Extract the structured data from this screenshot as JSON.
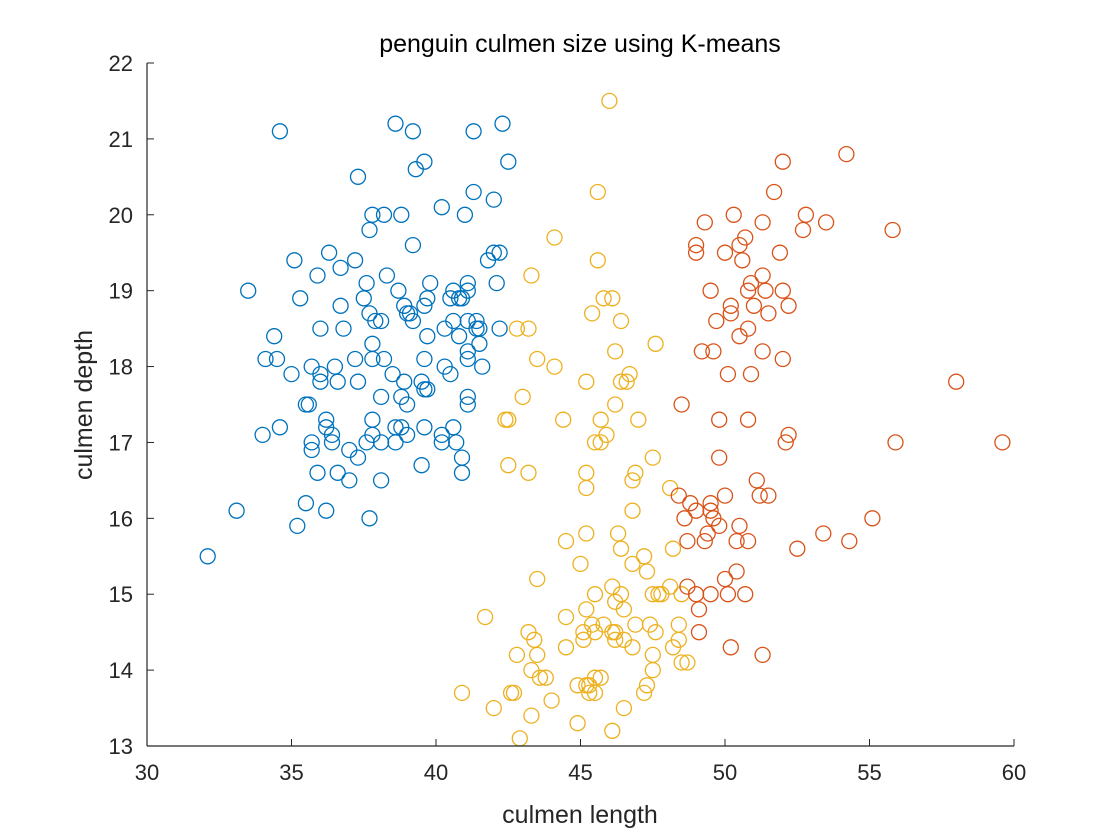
{
  "chart_data": {
    "type": "scatter",
    "title": "penguin culmen size using K-means",
    "xlabel": "culmen length",
    "ylabel": "culmen depth",
    "xlim": [
      30,
      60
    ],
    "ylim": [
      13,
      22
    ],
    "xticks": [
      "30",
      "35",
      "40",
      "45",
      "50",
      "55",
      "60"
    ],
    "yticks": [
      "13",
      "14",
      "15",
      "16",
      "17",
      "18",
      "19",
      "20",
      "21",
      "22"
    ],
    "marker": "open-circle",
    "grid": false,
    "series": [
      {
        "color": "#0072BD",
        "points": [
          [
            32.1,
            15.5
          ],
          [
            33.1,
            16.1
          ],
          [
            33.5,
            19.0
          ],
          [
            34.0,
            17.1
          ],
          [
            34.1,
            18.1
          ],
          [
            34.4,
            18.4
          ],
          [
            34.5,
            18.1
          ],
          [
            34.6,
            17.2
          ],
          [
            34.6,
            21.1
          ],
          [
            35.0,
            17.9
          ],
          [
            35.1,
            19.4
          ],
          [
            35.2,
            15.9
          ],
          [
            35.3,
            18.9
          ],
          [
            35.5,
            17.5
          ],
          [
            35.5,
            16.2
          ],
          [
            35.6,
            17.5
          ],
          [
            35.7,
            17.0
          ],
          [
            35.7,
            16.9
          ],
          [
            35.7,
            18.0
          ],
          [
            35.9,
            16.6
          ],
          [
            35.9,
            19.2
          ],
          [
            36.0,
            17.9
          ],
          [
            36.0,
            18.5
          ],
          [
            36.0,
            17.8
          ],
          [
            36.2,
            16.1
          ],
          [
            36.2,
            17.3
          ],
          [
            36.2,
            17.2
          ],
          [
            36.3,
            19.5
          ],
          [
            36.4,
            17.0
          ],
          [
            36.4,
            17.1
          ],
          [
            36.5,
            18.0
          ],
          [
            36.6,
            17.8
          ],
          [
            36.7,
            18.8
          ],
          [
            36.7,
            19.3
          ],
          [
            36.6,
            16.6
          ],
          [
            36.8,
            18.5
          ],
          [
            37.0,
            16.5
          ],
          [
            37.0,
            16.9
          ],
          [
            37.2,
            18.1
          ],
          [
            37.2,
            19.4
          ],
          [
            37.3,
            17.8
          ],
          [
            37.3,
            20.5
          ],
          [
            37.3,
            16.8
          ],
          [
            37.5,
            18.9
          ],
          [
            37.6,
            19.1
          ],
          [
            37.6,
            17.0
          ],
          [
            37.7,
            18.7
          ],
          [
            37.7,
            19.8
          ],
          [
            37.7,
            16.0
          ],
          [
            37.8,
            18.3
          ],
          [
            37.8,
            17.1
          ],
          [
            37.8,
            20.0
          ],
          [
            37.8,
            17.3
          ],
          [
            37.8,
            18.1
          ],
          [
            37.9,
            18.6
          ],
          [
            38.1,
            17.0
          ],
          [
            38.1,
            18.6
          ],
          [
            38.1,
            16.5
          ],
          [
            38.1,
            17.6
          ],
          [
            38.2,
            18.1
          ],
          [
            38.2,
            20.0
          ],
          [
            38.3,
            19.2
          ],
          [
            38.5,
            17.9
          ],
          [
            38.6,
            21.2
          ],
          [
            38.6,
            17.2
          ],
          [
            38.6,
            17.0
          ],
          [
            38.7,
            19.0
          ],
          [
            38.8,
            17.2
          ],
          [
            38.8,
            20.0
          ],
          [
            38.8,
            17.6
          ],
          [
            38.9,
            18.8
          ],
          [
            38.9,
            17.8
          ],
          [
            39.0,
            17.1
          ],
          [
            39.0,
            18.7
          ],
          [
            39.0,
            17.5
          ],
          [
            39.1,
            18.7
          ],
          [
            39.2,
            19.6
          ],
          [
            39.2,
            21.1
          ],
          [
            39.2,
            18.6
          ],
          [
            39.3,
            20.6
          ],
          [
            39.5,
            16.7
          ],
          [
            39.5,
            17.8
          ],
          [
            39.6,
            17.7
          ],
          [
            39.6,
            18.1
          ],
          [
            39.6,
            18.8
          ],
          [
            39.6,
            17.2
          ],
          [
            39.6,
            20.7
          ],
          [
            39.7,
            18.4
          ],
          [
            39.7,
            17.7
          ],
          [
            39.7,
            18.9
          ],
          [
            39.8,
            19.1
          ],
          [
            40.2,
            17.0
          ],
          [
            40.2,
            20.1
          ],
          [
            40.2,
            17.1
          ],
          [
            40.3,
            18.0
          ],
          [
            40.3,
            18.5
          ],
          [
            40.5,
            17.9
          ],
          [
            40.5,
            18.9
          ],
          [
            40.6,
            19.0
          ],
          [
            40.6,
            17.2
          ],
          [
            40.6,
            18.6
          ],
          [
            40.7,
            17.0
          ],
          [
            40.8,
            18.4
          ],
          [
            40.8,
            18.9
          ],
          [
            40.9,
            16.6
          ],
          [
            40.9,
            16.8
          ],
          [
            40.9,
            18.9
          ],
          [
            41.0,
            20.0
          ],
          [
            41.1,
            17.5
          ],
          [
            41.1,
            18.2
          ],
          [
            41.1,
            19.0
          ],
          [
            41.1,
            18.1
          ],
          [
            41.1,
            17.6
          ],
          [
            41.1,
            19.1
          ],
          [
            41.1,
            18.6
          ],
          [
            41.3,
            20.3
          ],
          [
            41.3,
            21.1
          ],
          [
            41.4,
            18.6
          ],
          [
            41.4,
            18.5
          ],
          [
            41.5,
            18.3
          ],
          [
            41.5,
            18.5
          ],
          [
            41.6,
            18.0
          ],
          [
            41.8,
            19.4
          ],
          [
            42.0,
            20.2
          ],
          [
            42.0,
            19.5
          ],
          [
            42.1,
            19.1
          ],
          [
            42.2,
            19.5
          ],
          [
            42.2,
            18.5
          ],
          [
            42.3,
            21.2
          ],
          [
            42.5,
            20.7
          ]
        ]
      },
      {
        "color": "#EDB120",
        "points": [
          [
            40.9,
            13.7
          ],
          [
            41.7,
            14.7
          ],
          [
            42.0,
            13.5
          ],
          [
            42.4,
            17.3
          ],
          [
            42.5,
            17.3
          ],
          [
            42.5,
            16.7
          ],
          [
            42.6,
            13.7
          ],
          [
            42.7,
            13.7
          ],
          [
            42.8,
            18.5
          ],
          [
            42.8,
            14.2
          ],
          [
            42.9,
            13.1
          ],
          [
            43.0,
            17.6
          ],
          [
            43.2,
            14.5
          ],
          [
            43.2,
            16.6
          ],
          [
            43.2,
            18.5
          ],
          [
            43.3,
            14.0
          ],
          [
            43.3,
            13.4
          ],
          [
            43.3,
            19.2
          ],
          [
            43.4,
            14.4
          ],
          [
            43.5,
            15.2
          ],
          [
            43.5,
            18.1
          ],
          [
            43.5,
            14.2
          ],
          [
            43.6,
            13.9
          ],
          [
            43.8,
            13.9
          ],
          [
            44.0,
            13.6
          ],
          [
            44.1,
            18.0
          ],
          [
            44.1,
            19.7
          ],
          [
            44.4,
            17.3
          ],
          [
            44.5,
            14.3
          ],
          [
            44.5,
            15.7
          ],
          [
            44.5,
            14.7
          ],
          [
            44.9,
            13.3
          ],
          [
            44.9,
            13.8
          ],
          [
            45.0,
            15.4
          ],
          [
            45.1,
            14.5
          ],
          [
            45.1,
            14.4
          ],
          [
            45.2,
            13.8
          ],
          [
            45.2,
            14.8
          ],
          [
            45.2,
            15.8
          ],
          [
            45.2,
            16.6
          ],
          [
            45.2,
            16.4
          ],
          [
            45.2,
            17.8
          ],
          [
            45.3,
            13.7
          ],
          [
            45.3,
            13.8
          ],
          [
            45.4,
            14.6
          ],
          [
            45.4,
            18.7
          ],
          [
            45.5,
            13.7
          ],
          [
            45.5,
            13.9
          ],
          [
            45.5,
            15.0
          ],
          [
            45.5,
            14.5
          ],
          [
            45.5,
            17.0
          ],
          [
            45.6,
            19.4
          ],
          [
            45.6,
            20.3
          ],
          [
            45.7,
            13.9
          ],
          [
            45.7,
            17.3
          ],
          [
            45.7,
            17.0
          ],
          [
            45.8,
            14.6
          ],
          [
            45.8,
            18.9
          ],
          [
            45.9,
            17.1
          ],
          [
            46.0,
            21.5
          ],
          [
            46.1,
            18.9
          ],
          [
            46.1,
            15.1
          ],
          [
            46.1,
            13.2
          ],
          [
            46.1,
            14.5
          ],
          [
            46.2,
            14.5
          ],
          [
            46.2,
            14.4
          ],
          [
            46.2,
            14.9
          ],
          [
            46.2,
            17.5
          ],
          [
            46.2,
            18.2
          ],
          [
            46.3,
            15.8
          ],
          [
            46.4,
            15.0
          ],
          [
            46.4,
            18.6
          ],
          [
            46.4,
            17.8
          ],
          [
            46.4,
            15.6
          ],
          [
            46.5,
            13.5
          ],
          [
            46.5,
            14.8
          ],
          [
            46.5,
            14.4
          ],
          [
            46.6,
            17.8
          ],
          [
            46.7,
            17.9
          ],
          [
            46.8,
            16.5
          ],
          [
            46.8,
            16.1
          ],
          [
            46.8,
            14.3
          ],
          [
            46.8,
            15.4
          ],
          [
            46.9,
            16.6
          ],
          [
            46.9,
            14.6
          ],
          [
            47.0,
            17.3
          ],
          [
            47.2,
            13.7
          ],
          [
            47.2,
            15.5
          ],
          [
            47.3,
            13.8
          ],
          [
            47.3,
            15.3
          ],
          [
            47.4,
            14.6
          ],
          [
            47.5,
            14.2
          ],
          [
            47.5,
            14.0
          ],
          [
            47.5,
            16.8
          ],
          [
            47.5,
            15.0
          ],
          [
            47.6,
            14.5
          ],
          [
            47.6,
            18.3
          ],
          [
            47.7,
            15.0
          ],
          [
            47.8,
            15.0
          ],
          [
            48.1,
            15.1
          ],
          [
            48.1,
            16.4
          ],
          [
            48.2,
            15.6
          ],
          [
            48.2,
            14.3
          ],
          [
            48.4,
            14.4
          ],
          [
            48.4,
            14.6
          ],
          [
            48.5,
            14.1
          ],
          [
            48.5,
            15.0
          ],
          [
            48.7,
            14.1
          ]
        ]
      },
      {
        "color": "#D95319",
        "points": [
          [
            48.4,
            16.3
          ],
          [
            48.5,
            17.5
          ],
          [
            48.6,
            16.0
          ],
          [
            48.7,
            15.1
          ],
          [
            48.7,
            15.7
          ],
          [
            48.8,
            16.2
          ],
          [
            49.0,
            19.5
          ],
          [
            49.0,
            19.6
          ],
          [
            49.0,
            16.1
          ],
          [
            49.0,
            15.0
          ],
          [
            49.1,
            14.8
          ],
          [
            49.1,
            14.5
          ],
          [
            49.2,
            18.2
          ],
          [
            49.3,
            15.7
          ],
          [
            49.3,
            19.9
          ],
          [
            49.4,
            15.8
          ],
          [
            49.5,
            16.2
          ],
          [
            49.5,
            16.1
          ],
          [
            49.5,
            19.0
          ],
          [
            49.5,
            15.0
          ],
          [
            49.6,
            16.0
          ],
          [
            49.6,
            18.2
          ],
          [
            49.7,
            18.6
          ],
          [
            49.8,
            16.8
          ],
          [
            49.8,
            17.3
          ],
          [
            49.8,
            15.9
          ],
          [
            50.0,
            19.5
          ],
          [
            50.0,
            16.3
          ],
          [
            50.0,
            15.2
          ],
          [
            50.1,
            17.9
          ],
          [
            50.1,
            15.0
          ],
          [
            50.2,
            18.8
          ],
          [
            50.2,
            18.7
          ],
          [
            50.2,
            14.3
          ],
          [
            50.3,
            20.0
          ],
          [
            50.4,
            15.7
          ],
          [
            50.4,
            15.3
          ],
          [
            50.5,
            19.6
          ],
          [
            50.5,
            15.9
          ],
          [
            50.5,
            18.4
          ],
          [
            50.6,
            19.4
          ],
          [
            50.7,
            19.7
          ],
          [
            50.7,
            15.0
          ],
          [
            50.8,
            19.0
          ],
          [
            50.8,
            18.5
          ],
          [
            50.8,
            17.3
          ],
          [
            50.8,
            15.7
          ],
          [
            50.9,
            17.9
          ],
          [
            50.9,
            19.1
          ],
          [
            51.0,
            18.8
          ],
          [
            51.1,
            16.5
          ],
          [
            51.2,
            16.3
          ],
          [
            51.3,
            19.2
          ],
          [
            51.3,
            18.2
          ],
          [
            51.3,
            19.9
          ],
          [
            51.3,
            14.2
          ],
          [
            51.4,
            19.0
          ],
          [
            51.5,
            16.3
          ],
          [
            51.5,
            18.7
          ],
          [
            51.7,
            20.3
          ],
          [
            51.9,
            19.5
          ],
          [
            52.0,
            18.1
          ],
          [
            52.0,
            19.0
          ],
          [
            52.0,
            20.7
          ],
          [
            52.1,
            17.0
          ],
          [
            52.2,
            17.1
          ],
          [
            52.2,
            18.8
          ],
          [
            52.5,
            15.6
          ],
          [
            52.7,
            19.8
          ],
          [
            52.8,
            20.0
          ],
          [
            53.4,
            15.8
          ],
          [
            53.5,
            19.9
          ],
          [
            54.2,
            20.8
          ],
          [
            54.3,
            15.7
          ],
          [
            55.1,
            16.0
          ],
          [
            55.8,
            19.8
          ],
          [
            55.9,
            17.0
          ],
          [
            58.0,
            17.8
          ],
          [
            59.6,
            17.0
          ]
        ]
      }
    ]
  }
}
